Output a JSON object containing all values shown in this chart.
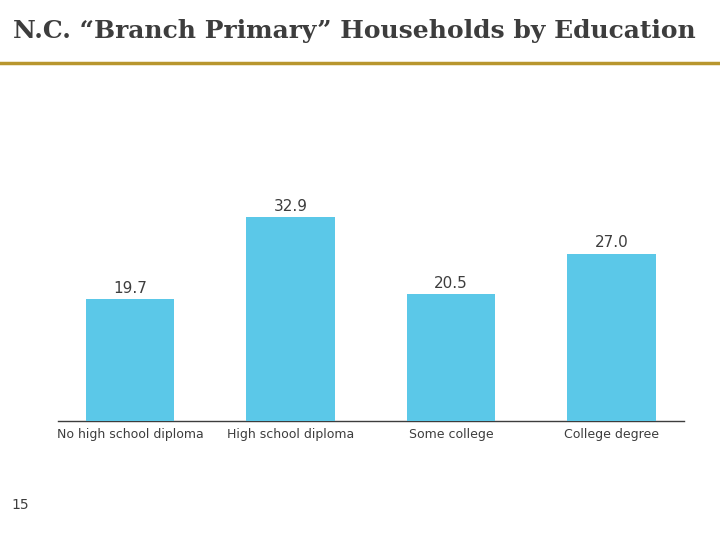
{
  "title": "N.C. “Branch Primary” Households by Education",
  "categories": [
    "No high school diploma",
    "High school diploma",
    "Some college",
    "College degree"
  ],
  "values": [
    19.7,
    32.9,
    20.5,
    27.0
  ],
  "bar_color": "#5BC8E8",
  "title_fontsize": 18,
  "value_fontsize": 11,
  "tick_fontsize": 9,
  "page_number": "15",
  "background_color": "#FFFFFF",
  "title_color": "#3D3D3D",
  "bar_label_color": "#3D3D3D",
  "separator_color": "#B8962E",
  "bottom_separator_color": "#B8962E",
  "ylim": [
    0,
    40
  ]
}
